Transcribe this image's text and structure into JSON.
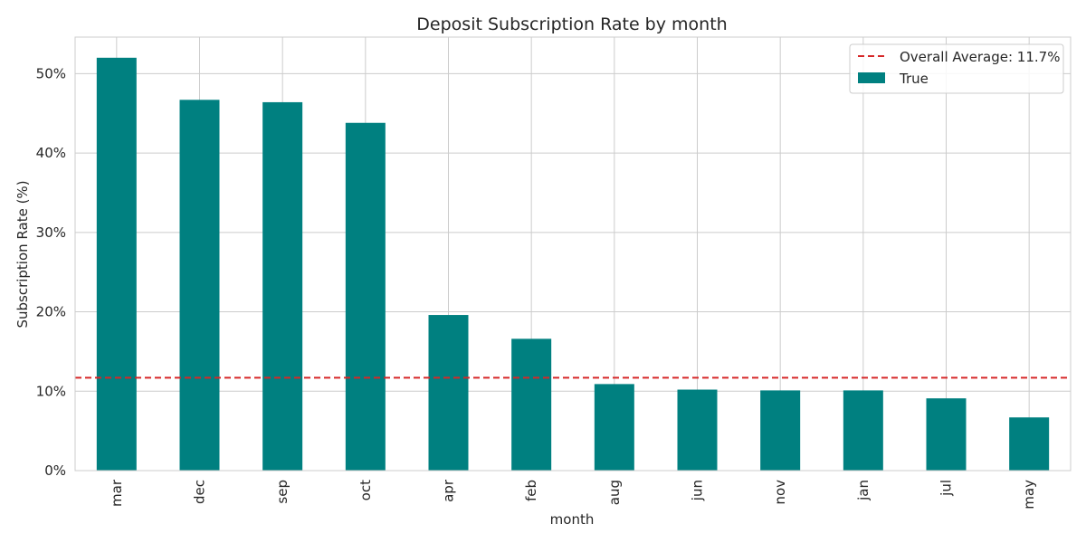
{
  "chart_data": {
    "type": "bar",
    "title": "Deposit Subscription Rate by month",
    "xlabel": "month",
    "ylabel": "Subscription Rate (%)",
    "categories": [
      "mar",
      "dec",
      "sep",
      "oct",
      "apr",
      "feb",
      "aug",
      "jun",
      "nov",
      "jan",
      "jul",
      "may"
    ],
    "series": [
      {
        "name": "True",
        "values": [
          52.0,
          46.7,
          46.4,
          43.8,
          19.6,
          16.6,
          10.9,
          10.2,
          10.1,
          10.1,
          9.1,
          6.7
        ]
      }
    ],
    "ylim": [
      0,
      54.6
    ],
    "yticks": [
      0,
      10,
      20,
      30,
      40,
      50
    ],
    "ytick_labels": [
      "0%",
      "10%",
      "20%",
      "30%",
      "40%",
      "50%"
    ],
    "reference_line": {
      "label": "Overall Average: 11.7%",
      "value": 11.7,
      "style": "dashed"
    },
    "legend_position": "top-right",
    "grid": true,
    "colors": {
      "bar": "#008080",
      "average_line": "#d62728",
      "grid": "#cccccc"
    }
  }
}
